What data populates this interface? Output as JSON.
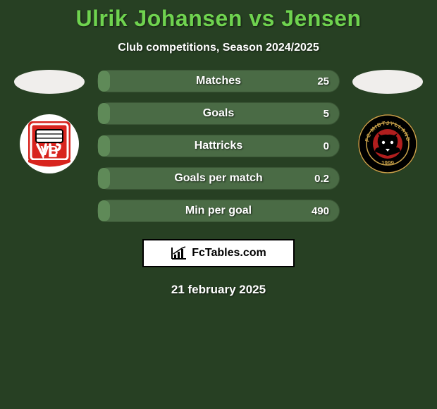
{
  "background_color": "#274023",
  "title": {
    "text": "Ulrik Johansen vs Jensen",
    "color": "#6fd34f",
    "fontsize": 32
  },
  "subtitle": {
    "text": "Club competitions, Season 2024/2025",
    "color": "#ffffff",
    "fontsize": 16
  },
  "player_left": {
    "photo_bg": "#f0eeec",
    "club": {
      "outer_bg": "#ffffff",
      "inner_bg": "#d8241e",
      "accent": "#ffffff",
      "letters": "VB",
      "letters_color": "#ffffff"
    }
  },
  "player_right": {
    "photo_bg": "#f0eeec",
    "club": {
      "outer_bg": "#000000",
      "ring_color": "#c9a24a",
      "inner_bg": "#b11e1e",
      "name_top": "FC MIDTJYLLAND",
      "year": "1999",
      "text_color": "#c9a24a"
    }
  },
  "stats": {
    "bar_track_color": "#4a6b45",
    "bar_fill_color": "#5f8a58",
    "bar_border_color": "#3a5535",
    "label_color": "#ffffff",
    "rows": [
      {
        "label": "Matches",
        "left": "",
        "right": "25",
        "fill_pct": 5
      },
      {
        "label": "Goals",
        "left": "",
        "right": "5",
        "fill_pct": 5
      },
      {
        "label": "Hattricks",
        "left": "",
        "right": "0",
        "fill_pct": 5
      },
      {
        "label": "Goals per match",
        "left": "",
        "right": "0.2",
        "fill_pct": 5
      },
      {
        "label": "Min per goal",
        "left": "",
        "right": "490",
        "fill_pct": 5
      }
    ]
  },
  "watermark": {
    "text": "FcTables.com",
    "box_bg": "#ffffff",
    "border_color": "#000000"
  },
  "date": "21 february 2025"
}
